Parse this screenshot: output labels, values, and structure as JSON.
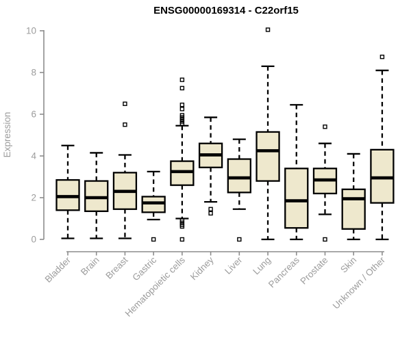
{
  "chart_data": {
    "type": "boxplot",
    "title": "ENSG00000169314 - C22orf15",
    "ylabel": "Expression",
    "ylim": [
      0,
      10
    ],
    "yticks": [
      0,
      2,
      4,
      6,
      8,
      10
    ],
    "grid": false,
    "legend": false,
    "categories": [
      "Bladder",
      "Brain",
      "Breast",
      "Gastric",
      "Hematopoietic cells",
      "Kidney",
      "Liver",
      "Lung",
      "Pancreas",
      "Prostate",
      "Skin",
      "Unknown / Other"
    ],
    "series": [
      {
        "category": "Bladder",
        "whisker_low": 0.05,
        "q1": 1.4,
        "median": 2.05,
        "q3": 2.85,
        "whisker_high": 4.5,
        "outliers": []
      },
      {
        "category": "Brain",
        "whisker_low": 0.05,
        "q1": 1.35,
        "median": 2.0,
        "q3": 2.8,
        "whisker_high": 4.15,
        "outliers": []
      },
      {
        "category": "Breast",
        "whisker_low": 0.05,
        "q1": 1.45,
        "median": 2.3,
        "q3": 3.2,
        "whisker_high": 4.05,
        "outliers": [
          5.5,
          6.5
        ]
      },
      {
        "category": "Gastric",
        "whisker_low": 0.95,
        "q1": 1.3,
        "median": 1.75,
        "q3": 2.05,
        "whisker_high": 3.25,
        "outliers": [
          0.0
        ]
      },
      {
        "category": "Hematopoietic cells",
        "whisker_low": 1.0,
        "q1": 2.6,
        "median": 3.25,
        "q3": 3.75,
        "whisker_high": 5.45,
        "outliers": [
          7.65,
          7.25,
          6.45,
          6.25,
          5.95,
          5.85,
          5.75,
          5.65,
          5.55,
          0.9,
          0.8,
          0.7,
          0.62,
          0.0
        ]
      },
      {
        "category": "Kidney",
        "whisker_low": 1.8,
        "q1": 3.45,
        "median": 4.05,
        "q3": 4.6,
        "whisker_high": 5.85,
        "outliers": [
          1.45,
          1.25
        ]
      },
      {
        "category": "Liver",
        "whisker_low": 1.45,
        "q1": 2.25,
        "median": 2.95,
        "q3": 3.85,
        "whisker_high": 4.8,
        "outliers": [
          0.0
        ]
      },
      {
        "category": "Lung",
        "whisker_low": 0.0,
        "q1": 2.8,
        "median": 4.25,
        "q3": 5.15,
        "whisker_high": 8.3,
        "outliers": [
          10.05
        ]
      },
      {
        "category": "Pancreas",
        "whisker_low": 0.0,
        "q1": 0.55,
        "median": 1.85,
        "q3": 3.4,
        "whisker_high": 6.45,
        "outliers": []
      },
      {
        "category": "Prostate",
        "whisker_low": 1.2,
        "q1": 2.2,
        "median": 2.85,
        "q3": 3.4,
        "whisker_high": 4.6,
        "outliers": [
          5.4,
          0.0
        ]
      },
      {
        "category": "Skin",
        "whisker_low": 0.0,
        "q1": 0.5,
        "median": 1.95,
        "q3": 2.4,
        "whisker_high": 4.1,
        "outliers": []
      },
      {
        "category": "Unknown / Other",
        "whisker_low": 0.0,
        "q1": 1.75,
        "median": 2.95,
        "q3": 4.3,
        "whisker_high": 8.1,
        "outliers": [
          8.75
        ]
      }
    ],
    "style": {
      "box_fill": "#EEE8CD",
      "box_stroke": "#000000",
      "median_color": "#000000",
      "whisker_color": "#000000",
      "axis_color": "#8C8C8C",
      "label_color": "#9C9C9C",
      "title_color": "#000000",
      "background": "#FFFFFF"
    }
  }
}
